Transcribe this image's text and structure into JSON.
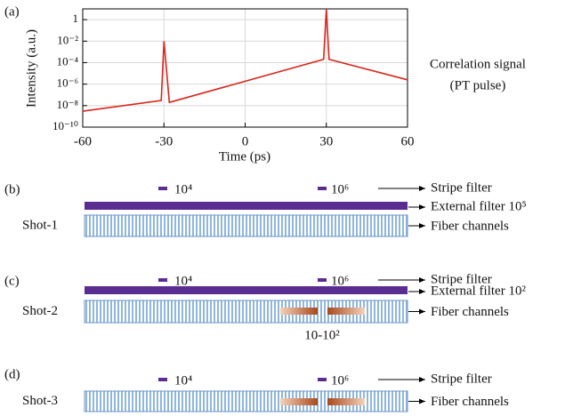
{
  "chart_data": {
    "type": "line",
    "panel_label": "(a)",
    "xlabel": "Time (ps)",
    "ylabel": "Intensity (a.u.)",
    "annotations": [
      "Correlation signal",
      "(PT pulse)"
    ],
    "x": [
      -60,
      -31,
      -30,
      -28,
      29,
      30,
      31,
      60
    ],
    "values": [
      3e-09,
      3e-08,
      0.01,
      2e-08,
      0.0002,
      10,
      0.0002,
      2.5e-06
    ],
    "color": "#d9261c",
    "xlim": [
      -60,
      60
    ],
    "xticks": [
      -60,
      -30,
      0,
      30,
      60
    ],
    "ylim": [
      1e-10,
      10
    ],
    "log_y": true,
    "yticks": [
      {
        "value": 1e-10,
        "label": "10⁻¹⁰"
      },
      {
        "value": 1e-08,
        "label": "10⁻⁸"
      },
      {
        "value": 1e-06,
        "label": "10⁻⁶"
      },
      {
        "value": 0.0001,
        "label": "10⁻⁴"
      },
      {
        "value": 0.01,
        "label": "10⁻²"
      },
      1
    ],
    "grid": true
  },
  "panels": [
    {
      "label": "(b)",
      "shot": "Shot-1",
      "stripe_left": "10⁴",
      "stripe_right": "10⁶",
      "stripe_filter": "Stripe filter",
      "external_filter": "External filter 10⁵",
      "fiber_channels": "Fiber channels"
    },
    {
      "label": "(c)",
      "shot": "Shot-2",
      "stripe_left": "10⁴",
      "stripe_right": "10⁶",
      "stripe_filter": "Stripe filter",
      "external_filter": "External filter 10²",
      "fiber_channels": "Fiber channels",
      "hot_label": "10-10²"
    },
    {
      "label": "(d)",
      "shot": "Shot-3",
      "stripe_left": "10⁴",
      "stripe_right": "10⁶",
      "stripe_filter": "Stripe filter",
      "fiber_channels": "Fiber channels"
    }
  ]
}
